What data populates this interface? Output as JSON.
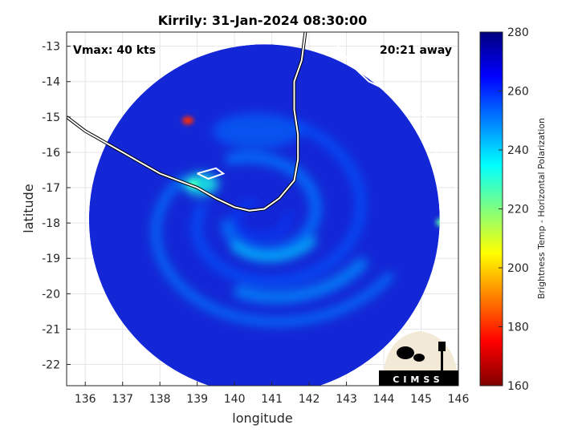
{
  "chart_data": {
    "type": "heatmap",
    "title": "Kirrily: 31-Jan-2024 08:30:00",
    "xlabel": "longitude",
    "ylabel": "latitude",
    "xlim": [
      135.5,
      146.0
    ],
    "ylim": [
      -22.6,
      -12.6
    ],
    "xticks": [
      136,
      137,
      138,
      139,
      140,
      141,
      142,
      143,
      144,
      145,
      146
    ],
    "yticks": [
      -13,
      -14,
      -15,
      -16,
      -17,
      -18,
      -19,
      -20,
      -21,
      -22
    ],
    "grid": true,
    "annotations": {
      "vmax": "Vmax: 40 kts",
      "distance": "20:21 away"
    },
    "scan_circle": {
      "center_lon": 140.8,
      "center_lat": -17.9,
      "radius_deg": 4.7
    },
    "storm_center": {
      "lon": 140.6,
      "lat": -17.8
    },
    "hot_spots": [
      {
        "lon": 138.75,
        "lat": -15.1,
        "value": 180
      },
      {
        "lon": 145.55,
        "lat": -17.98,
        "value": 225
      },
      {
        "lon": 138.9,
        "lat": -16.9,
        "value": 228
      }
    ],
    "colorbar": {
      "label": "Brightness Temp - Horizontal Polarization",
      "min": 160,
      "max": 280,
      "ticks": [
        160,
        180,
        200,
        220,
        240,
        260,
        280
      ],
      "colormap": "jet"
    },
    "logo": "CIMSS"
  },
  "colors": {
    "background_fill": "#1327d6",
    "coastline": "#ffffff",
    "outside_coast": "#000000",
    "grid": "#e6e6e6"
  }
}
